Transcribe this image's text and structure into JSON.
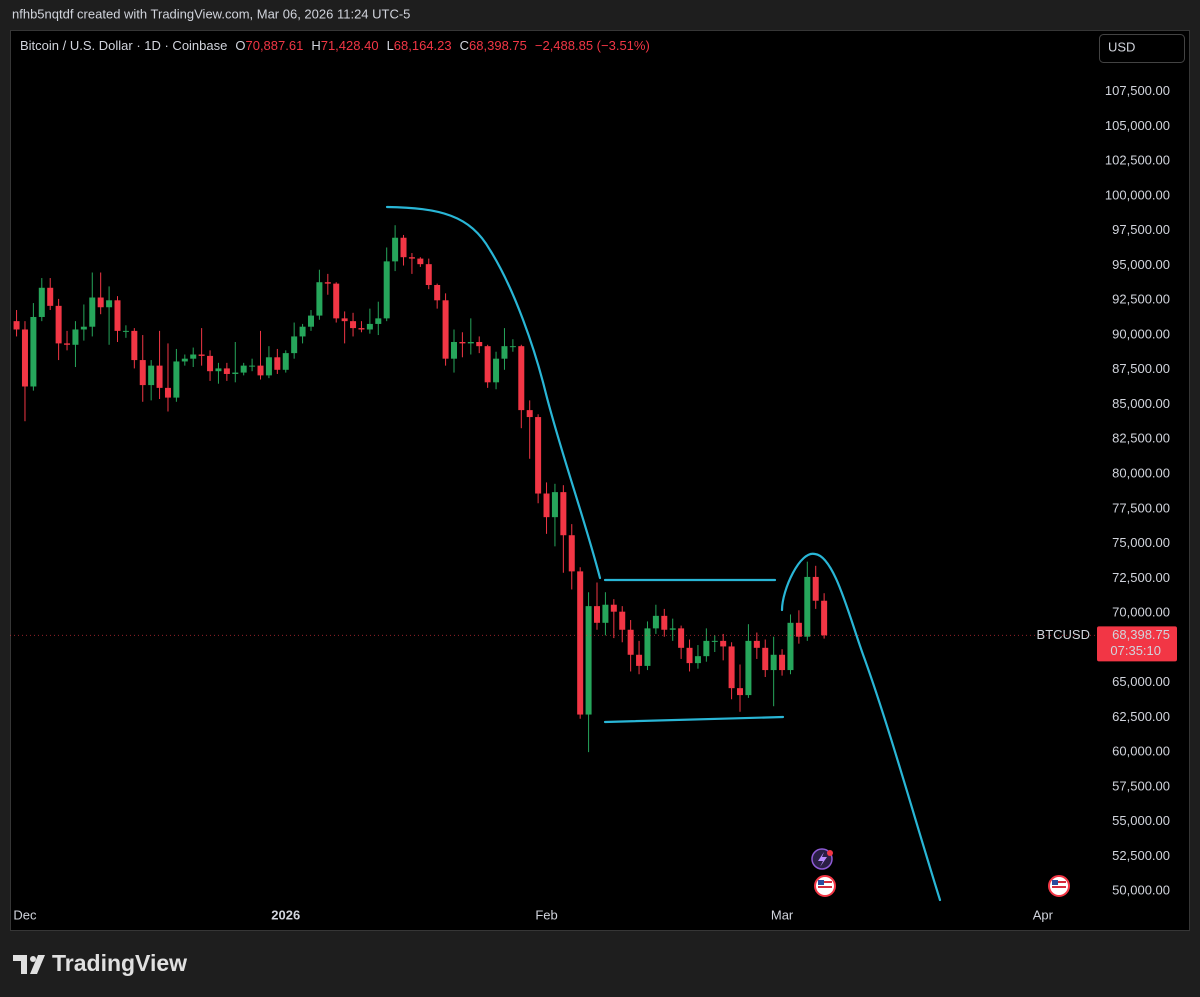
{
  "chart_data": {
    "type": "candlestick",
    "credit": "nfhb5nqtdf created with TradingView.com, Mar 06, 2026 11:24 UTC-5",
    "symbol": "Bitcoin / U.S. Dollar · 1D · Coinbase",
    "ohlc_header": [
      {
        "key": "O",
        "value": "70,887.61"
      },
      {
        "key": "H",
        "value": "71,428.40"
      },
      {
        "key": "L",
        "value": "68,164.23"
      },
      {
        "key": "C",
        "value": "68,398.75"
      }
    ],
    "change": "−2,488.85 (−3.51%)",
    "currency": "USD",
    "ticker": "BTCUSD",
    "last_price_label": "68,398.75",
    "countdown": "07:35:10",
    "brand": "TradingView",
    "up_color": "#26a65b",
    "down_color": "#f23645",
    "categories": [
      null,
      null,
      null,
      null,
      null,
      null,
      null,
      null,
      null,
      null,
      null,
      null,
      null,
      null,
      null,
      null,
      null,
      null,
      null,
      null,
      null,
      null,
      null,
      null,
      null,
      null,
      null,
      null,
      null,
      null,
      null,
      null,
      null,
      null,
      null,
      null,
      null,
      null,
      null,
      null,
      null,
      null,
      null,
      null,
      null,
      null,
      null,
      null,
      null,
      null,
      null,
      null,
      null,
      null,
      null,
      null,
      null,
      null,
      null,
      null,
      null,
      null,
      null,
      null,
      null,
      null,
      null,
      null,
      null,
      null,
      null,
      null,
      null,
      null,
      null,
      null,
      null,
      null,
      null,
      null,
      null,
      null,
      null,
      null,
      null,
      null,
      null,
      null,
      null,
      null,
      null,
      null,
      null,
      null,
      null,
      null,
      null
    ],
    "open": [
      91000,
      90400,
      86300,
      91300,
      93400,
      92100,
      89400,
      89300,
      90400,
      90600,
      92700,
      92000,
      92500,
      90300,
      90300,
      88200,
      86400,
      87800,
      86200,
      85500,
      88100,
      88300,
      88600,
      88500,
      87400,
      87600,
      87200,
      87300,
      87800,
      87800,
      87100,
      88400,
      87500,
      88700,
      89900,
      90600,
      91400,
      93800,
      93700,
      91200,
      91000,
      90500,
      90400,
      90800,
      91200,
      95300,
      97000,
      95600,
      95500,
      95100,
      93600,
      92500,
      88300,
      89500,
      89400,
      89500,
      89200,
      86600,
      88300,
      89200,
      89200,
      84600,
      84100,
      78600,
      76900,
      78700,
      75600,
      73000,
      62700,
      70500,
      69300,
      70600,
      70100,
      68800,
      67000,
      66200,
      68900,
      69800,
      68800,
      68900,
      67500,
      66400,
      66900,
      68000,
      68000,
      67600,
      64600,
      64100,
      68000,
      67500,
      65900,
      67000,
      65900,
      69300,
      68300,
      72600,
      70887.61
    ],
    "high": [
      91800,
      91000,
      92300,
      94100,
      94100,
      92600,
      90300,
      91000,
      92200,
      94500,
      94500,
      93500,
      92800,
      90700,
      90500,
      90000,
      88200,
      90300,
      89400,
      89000,
      88600,
      89100,
      90500,
      88900,
      88000,
      88000,
      89500,
      88000,
      88300,
      90300,
      89200,
      89000,
      88900,
      90900,
      90800,
      91800,
      94700,
      94400,
      93800,
      91700,
      91600,
      91000,
      91900,
      92400,
      96300,
      97900,
      97200,
      95900,
      95600,
      95500,
      93700,
      93000,
      90400,
      90200,
      91200,
      89900,
      89300,
      88800,
      90500,
      89700,
      89300,
      85300,
      84300,
      79400,
      79300,
      79200,
      76400,
      73300,
      71500,
      72200,
      71500,
      71000,
      70500,
      69500,
      68000,
      69400,
      70600,
      70300,
      69600,
      69100,
      68100,
      67700,
      68900,
      68400,
      68500,
      67900,
      66300,
      69200,
      68600,
      68100,
      68300,
      67400,
      69900,
      70200,
      73700,
      73400,
      71428.4
    ],
    "low": [
      89900,
      83800,
      86000,
      91000,
      91800,
      88200,
      88900,
      87700,
      89600,
      89900,
      91500,
      89300,
      89500,
      89800,
      87600,
      85200,
      85300,
      85400,
      84500,
      85200,
      87800,
      87700,
      87800,
      86700,
      86500,
      86700,
      86600,
      87100,
      87400,
      86800,
      86900,
      87200,
      87300,
      88300,
      89400,
      90300,
      91100,
      92900,
      90900,
      89400,
      89900,
      90200,
      90100,
      90000,
      91000,
      94600,
      95000,
      94400,
      94900,
      93300,
      91900,
      87800,
      87300,
      88400,
      88600,
      88700,
      86200,
      86100,
      87500,
      88800,
      83300,
      81100,
      77900,
      75700,
      74800,
      72900,
      71700,
      62400,
      60000,
      68800,
      68400,
      68200,
      67900,
      65800,
      65600,
      65900,
      68500,
      68300,
      68000,
      66700,
      65800,
      66000,
      66500,
      67200,
      66600,
      63800,
      62900,
      63900,
      66700,
      65400,
      63300,
      65500,
      65600,
      67800,
      68000,
      70300,
      68164.23
    ],
    "close": [
      90400,
      86300,
      91300,
      93400,
      92100,
      89400,
      89300,
      90400,
      90600,
      92700,
      92000,
      92500,
      90300,
      90300,
      88200,
      86400,
      87800,
      86200,
      85500,
      88100,
      88300,
      88600,
      88500,
      87400,
      87600,
      87200,
      87300,
      87800,
      87800,
      87100,
      88400,
      87500,
      88700,
      89900,
      90600,
      91400,
      93800,
      93700,
      91200,
      91000,
      90500,
      90400,
      90800,
      91200,
      95300,
      97000,
      95600,
      95500,
      95100,
      93600,
      92500,
      88300,
      89500,
      89400,
      89500,
      89200,
      86600,
      88300,
      89200,
      89200,
      84600,
      84100,
      78600,
      76900,
      78700,
      75600,
      73000,
      62700,
      70500,
      69300,
      70600,
      70100,
      68800,
      67000,
      66200,
      68900,
      69800,
      68800,
      68900,
      67500,
      66400,
      66900,
      68000,
      68000,
      67600,
      64600,
      64100,
      68000,
      67500,
      65900,
      67000,
      65900,
      69300,
      68300,
      72600,
      70887.61,
      68398.75
    ],
    "xlim": [
      -0.78,
      128.2
    ],
    "xticks": [
      {
        "value": 1,
        "label": "Dec"
      },
      {
        "value": 32,
        "label": "2026"
      },
      {
        "value": 63,
        "label": "Feb"
      },
      {
        "value": 91,
        "label": "Mar"
      },
      {
        "value": 122,
        "label": "Apr"
      }
    ],
    "ylim": [
      49000,
      111800
    ],
    "yticks": [
      {
        "value": 50000,
        "label": "50,000.00"
      },
      {
        "value": 52500,
        "label": "52,500.00"
      },
      {
        "value": 55000,
        "label": "55,000.00"
      },
      {
        "value": 57500,
        "label": "57,500.00"
      },
      {
        "value": 60000,
        "label": "60,000.00"
      },
      {
        "value": 62500,
        "label": "62,500.00"
      },
      {
        "value": 65000,
        "label": "65,000.00"
      },
      {
        "value": 70000,
        "label": "70,000.00"
      },
      {
        "value": 72500,
        "label": "72,500.00"
      },
      {
        "value": 75000,
        "label": "75,000.00"
      },
      {
        "value": 77500,
        "label": "77,500.00"
      },
      {
        "value": 80000,
        "label": "80,000.00"
      },
      {
        "value": 82500,
        "label": "82,500.00"
      },
      {
        "value": 85000,
        "label": "85,000.00"
      },
      {
        "value": 87500,
        "label": "87,500.00"
      },
      {
        "value": 90000,
        "label": "90,000.00"
      },
      {
        "value": 92500,
        "label": "92,500.00"
      },
      {
        "value": 95000,
        "label": "95,000.00"
      },
      {
        "value": 97500,
        "label": "97,500.00"
      },
      {
        "value": 100000,
        "label": "100,000.00"
      },
      {
        "value": 102500,
        "label": "102,500.00"
      },
      {
        "value": 105000,
        "label": "105,000.00"
      },
      {
        "value": 107500,
        "label": "107,500.00"
      }
    ]
  }
}
